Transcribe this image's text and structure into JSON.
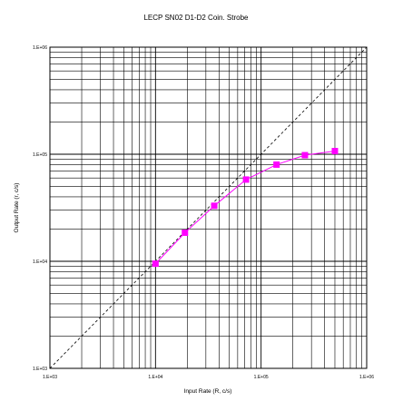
{
  "chart_data": {
    "type": "scatter",
    "title": "LECP SN02 D1-D2 Coin. Strobe",
    "xlabel": "Input Rate (R, c/s)",
    "ylabel": "Output Rate (r, c/s)",
    "xscale": "log",
    "yscale": "log",
    "xlim": [
      1000,
      1000000
    ],
    "ylim": [
      1000,
      1000000
    ],
    "xticks": [
      1000,
      10000,
      100000,
      1000000
    ],
    "yticks": [
      1000,
      10000,
      100000,
      1000000
    ],
    "xtick_labels": [
      "1.E+03",
      "1.E+04",
      "1.E+05",
      "1.E+06"
    ],
    "ytick_labels": [
      "1.E+03",
      "1.E+04",
      "1.E+05",
      "1.E+06"
    ],
    "grid": true,
    "legend": "none",
    "series": [
      {
        "style": "points-with-line",
        "color": "#ff00ff",
        "x": [
          10000,
          19000,
          36000,
          72000,
          140000,
          260000,
          500000
        ],
        "y": [
          9500,
          18500,
          33000,
          58000,
          80000,
          98000,
          107000
        ]
      }
    ],
    "reference_line": {
      "style": "dashed",
      "color": "#000000",
      "x": [
        1000,
        1000000
      ],
      "y": [
        1000,
        1000000
      ]
    }
  }
}
